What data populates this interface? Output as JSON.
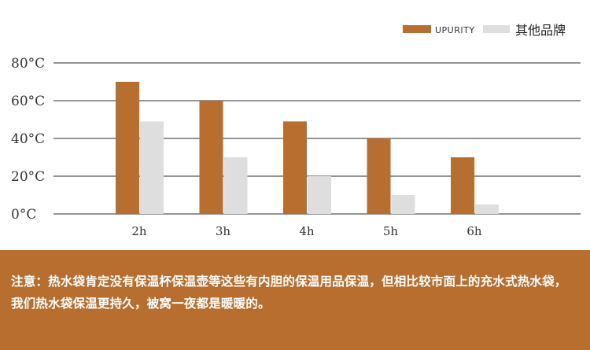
{
  "chart_data": {
    "type": "bar",
    "categories": [
      "2h",
      "3h",
      "4h",
      "5h",
      "6h"
    ],
    "series": [
      {
        "name": "UPURITY",
        "values": [
          70,
          60,
          49,
          40,
          30
        ]
      },
      {
        "name": "其他品牌",
        "values": [
          49,
          30,
          20,
          10,
          5
        ]
      }
    ],
    "y_ticks": [
      "0°C",
      "20°C",
      "40°C",
      "60°C",
      "80°C"
    ],
    "ylim": [
      0,
      80
    ],
    "grid": true,
    "legend_position": "top-right",
    "colors": {
      "series_1": "#b86e2f",
      "series_2": "#dedede",
      "grid": "#2b2b2b"
    }
  },
  "note": {
    "text": "注意：热水袋肯定没有保温杯保温壶等这些有内胆的保温用品保温，但相比较市面上的充水式热水袋，我们热水袋保温更持久，被窝一夜都是暖暖的。",
    "background": "#b86e2f"
  }
}
